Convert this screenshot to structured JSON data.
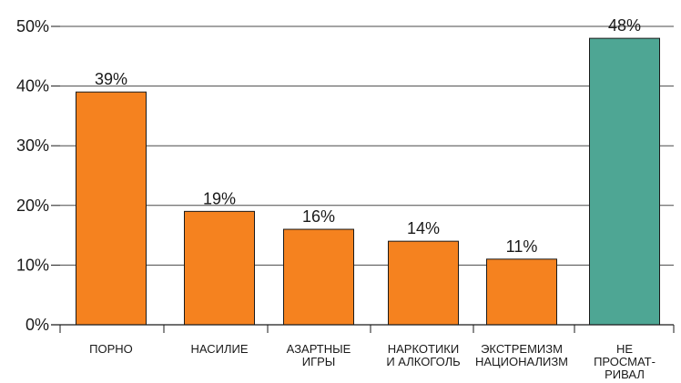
{
  "chart_data": {
    "type": "bar",
    "categories": [
      [
        "ПОРНО"
      ],
      [
        "НАСИЛИЕ"
      ],
      [
        "АЗАРТНЫЕ",
        "ИГРЫ"
      ],
      [
        "НАРКОТИКИ",
        "И АЛКОГОЛЬ"
      ],
      [
        "ЭКСТРЕМИЗМ",
        "НАЦИОНАЛИЗМ"
      ],
      [
        "НЕ",
        "ПРОСМАТ-",
        "РИВАЛ"
      ]
    ],
    "values": [
      39,
      19,
      16,
      14,
      11,
      48
    ],
    "data_labels": [
      "39%",
      "19%",
      "16%",
      "14%",
      "11%",
      "48%"
    ],
    "bar_colors": [
      "#f5821f",
      "#f5821f",
      "#f5821f",
      "#f5821f",
      "#f5821f",
      "#4ea694"
    ],
    "y_ticks": [
      0,
      10,
      20,
      30,
      40,
      50
    ],
    "y_tick_labels": [
      "0%",
      "10%",
      "20%",
      "30%",
      "40%",
      "50%"
    ],
    "ylim": [
      0,
      50
    ],
    "grid": true,
    "legend": "none",
    "title": "",
    "xlabel": "",
    "ylabel": ""
  }
}
